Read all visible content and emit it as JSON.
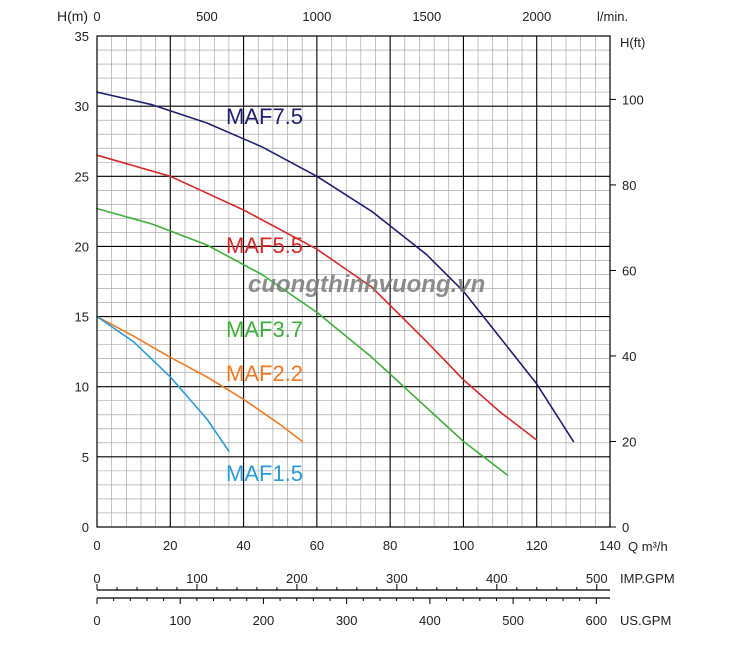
{
  "watermark": "cuongthinhvuong.vn",
  "chart_data": {
    "type": "line",
    "title": "",
    "xlabel": "Q m³/h",
    "ylabel": "H(m)",
    "xlim": [
      0,
      140
    ],
    "ylim": [
      0,
      35
    ],
    "grid": true,
    "x_ticks": [
      "0",
      "20",
      "40",
      "60",
      "80",
      "100",
      "120",
      "140"
    ],
    "y_ticks": [
      "0",
      "5",
      "10",
      "15",
      "20",
      "25",
      "30",
      "35"
    ],
    "top_axis": {
      "unit": "l/min.",
      "ticks": [
        "0",
        "500",
        "1000",
        "1500",
        "2000"
      ],
      "values": [
        0,
        500,
        1000,
        1500,
        2000
      ]
    },
    "right_axis": {
      "unit": "H(ft)",
      "ticks": [
        "0",
        "20",
        "40",
        "60",
        "80",
        "100"
      ],
      "values": [
        0,
        20,
        40,
        60,
        80,
        100
      ]
    },
    "imp_axis": {
      "unit": "IMP.GPM",
      "ticks": [
        "0",
        "100",
        "200",
        "300",
        "400",
        "500"
      ],
      "values": [
        0,
        100,
        200,
        300,
        400,
        500
      ]
    },
    "us_axis": {
      "unit": "US.GPM",
      "ticks": [
        "0",
        "100",
        "200",
        "300",
        "400",
        "500",
        "600"
      ],
      "values": [
        0,
        100,
        200,
        300,
        400,
        500,
        600
      ]
    },
    "series": [
      {
        "name": "MAF7.5",
        "color": "#1f1f6e",
        "x": [
          0,
          15,
          30,
          45,
          60,
          75,
          90,
          100,
          110,
          120,
          130
        ],
        "y": [
          31,
          30.1,
          28.8,
          27.1,
          25,
          22.5,
          19.4,
          16.8,
          13.5,
          10.2,
          6.1
        ]
      },
      {
        "name": "MAF5.5",
        "color": "#d42a2a",
        "x": [
          0,
          20,
          40,
          60,
          75,
          90,
          100,
          110,
          120
        ],
        "y": [
          26.5,
          25,
          22.6,
          19.8,
          17.1,
          13.2,
          10.5,
          8.2,
          6.2
        ]
      },
      {
        "name": "MAF3.7",
        "color": "#3fae3a",
        "x": [
          0,
          15,
          30,
          45,
          60,
          75,
          90,
          100,
          112
        ],
        "y": [
          22.7,
          21.6,
          20.1,
          18,
          15.3,
          12.1,
          8.5,
          6.1,
          3.7
        ]
      },
      {
        "name": "MAF2.2",
        "color": "#ee7a22",
        "x": [
          0,
          10,
          20,
          30,
          40,
          50,
          56
        ],
        "y": [
          15,
          13.6,
          12.1,
          10.7,
          9.1,
          7.3,
          6.1
        ]
      },
      {
        "name": "MAF1.5",
        "color": "#2b9ad8",
        "x": [
          0,
          10,
          20,
          30,
          36
        ],
        "y": [
          15,
          13.2,
          10.7,
          7.7,
          5.4
        ]
      }
    ]
  }
}
